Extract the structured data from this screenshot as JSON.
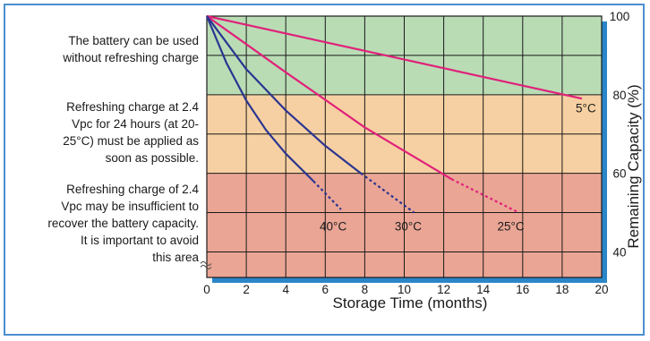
{
  "zones": [
    {
      "name": "ok",
      "y_from": 80,
      "y_to": 100,
      "color": "#b9dcb5",
      "description_lines": [
        "The battery can be used",
        "without refreshing charge"
      ]
    },
    {
      "name": "refresh-asap",
      "y_from": 60,
      "y_to": 80,
      "color": "#f6d0a2",
      "description_lines": [
        "Refreshing charge at 2.4",
        "Vpc for 24 hours (at 20-",
        "25°C) must be applied as",
        "soon as possible."
      ]
    },
    {
      "name": "avoid",
      "y_from": 33.5,
      "y_to": 60,
      "color": "#eaa595",
      "description_lines": [
        "Refreshing charge of 2.4",
        "Vpc may be insufficient to",
        "recover the battery capacity.",
        "It is important to avoid",
        "this area"
      ]
    }
  ],
  "colors": {
    "frame": "#4a8fd0",
    "axis_shadow": "#2a86c8",
    "grid": "#1a1a1a",
    "pink_series": "#e0217a",
    "navy_series": "#2b3590"
  },
  "chart_data": {
    "type": "line",
    "xlabel": "Storage Time (months)",
    "ylabel": "Remaining Capacity (%)",
    "xlim": [
      0,
      20
    ],
    "ylim": [
      33.5,
      100
    ],
    "xticks": [
      0,
      2,
      4,
      6,
      8,
      10,
      12,
      14,
      16,
      18,
      20
    ],
    "yticks": [
      40,
      60,
      80,
      100
    ],
    "grid": true,
    "axis_break": "y-axis break symbol near bottom-left",
    "series": [
      {
        "name": "5°C",
        "color": "#e0217a",
        "x": [
          0,
          19
        ],
        "y": [
          100,
          79
        ],
        "dashed_from_x": null,
        "label_pos": [
          19.2,
          75.5
        ]
      },
      {
        "name": "25°C",
        "color": "#e0217a",
        "x": [
          0,
          4,
          8,
          12.4,
          15.8
        ],
        "y": [
          100,
          85.7,
          71.7,
          58.5,
          50
        ],
        "dashed_from_x": 12.4,
        "label_pos": [
          15.4,
          45.5
        ]
      },
      {
        "name": "30°C",
        "color": "#2b3590",
        "x": [
          0,
          2,
          4,
          6,
          7.8,
          10.5
        ],
        "y": [
          100,
          86.5,
          76,
          67,
          60,
          50
        ],
        "dashed_from_x": 7.8,
        "label_pos": [
          10.2,
          45.5
        ]
      },
      {
        "name": "40°C",
        "color": "#2b3590",
        "x": [
          0,
          1,
          2,
          3,
          4,
          5.4,
          6.8
        ],
        "y": [
          100,
          88,
          78.5,
          71,
          65,
          58,
          50.8
        ],
        "dashed_from_x": 5.4,
        "label_pos": [
          6.4,
          45.5
        ]
      }
    ]
  }
}
